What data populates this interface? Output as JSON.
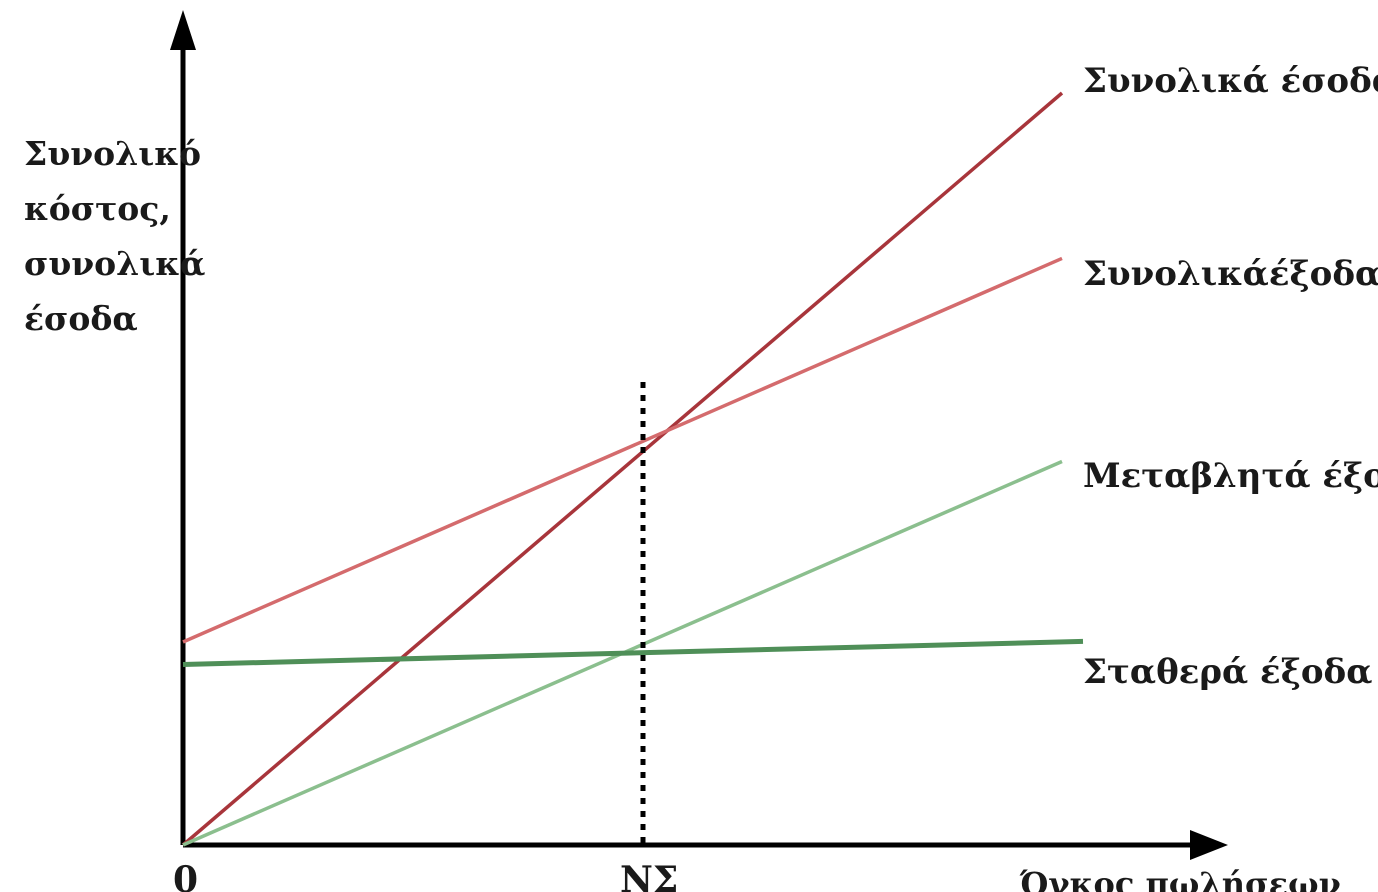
{
  "chart_data": {
    "type": "line",
    "title": "",
    "ylabel_lines": [
      "Συνολικό",
      "κόστος,",
      "συνολικά",
      "έσοδα"
    ],
    "xlabel": "Όγκος πωλήσεων",
    "x_tick_labels": [
      "0",
      "ΝΣ"
    ],
    "grid": false,
    "break_even": {
      "label": "ΝΣ",
      "x": 0.5,
      "y": 0.53,
      "line_style": "dotted-vertical"
    },
    "series": [
      {
        "name": "Συνολικά έσοδα",
        "color": "#a8353b",
        "x": [
          0,
          1
        ],
        "y": [
          0,
          1.0
        ]
      },
      {
        "name": "Συνολικάέξοδα",
        "color": "#d46b6d",
        "x": [
          0,
          1
        ],
        "y": [
          0.27,
          0.78
        ]
      },
      {
        "name": "Μεταβλητά έξοδα",
        "color": "#8bbf8e",
        "x": [
          0,
          1
        ],
        "y": [
          0,
          0.51
        ]
      },
      {
        "name": "Σταθερά έξοδα",
        "color": "#4f8f58",
        "x": [
          0,
          1
        ],
        "y": [
          0.24,
          0.27
        ]
      }
    ],
    "axis_color": "#000000"
  }
}
